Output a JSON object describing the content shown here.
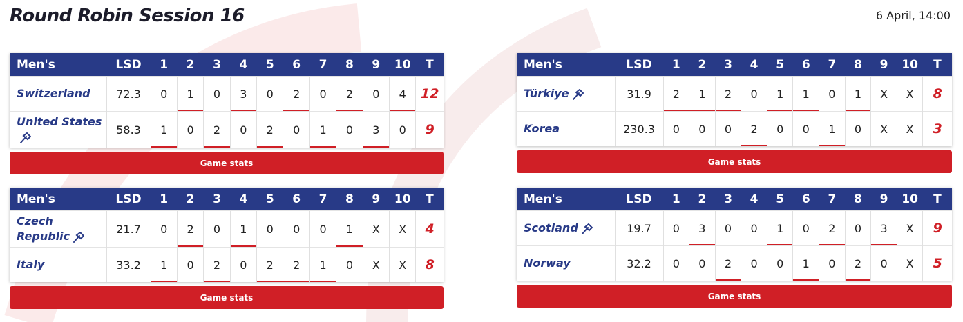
{
  "header": {
    "title": "Round Robin Session 16",
    "date": "6 April, 14:00"
  },
  "games": [
    {
      "columns": [
        "Men's",
        "LSD",
        "1",
        "2",
        "3",
        "4",
        "5",
        "6",
        "7",
        "8",
        "9",
        "10",
        "T"
      ],
      "teams": [
        {
          "name": "Switzerland",
          "hammer": false,
          "lsd": 72.3,
          "ends": [
            0,
            1,
            0,
            3,
            0,
            2,
            0,
            2,
            0,
            4
          ],
          "total": 12
        },
        {
          "name": "United States",
          "hammer": true,
          "lsd": 58.3,
          "ends": [
            1,
            0,
            2,
            0,
            2,
            0,
            1,
            0,
            3,
            0
          ],
          "total": 9
        }
      ],
      "button": "Game stats"
    },
    {
      "columns": [
        "Men's",
        "LSD",
        "1",
        "2",
        "3",
        "4",
        "5",
        "6",
        "7",
        "8",
        "9",
        "10",
        "T"
      ],
      "teams": [
        {
          "name": "Türkiye",
          "hammer": true,
          "lsd": 31.9,
          "ends": [
            2,
            1,
            2,
            0,
            1,
            1,
            0,
            1,
            "X",
            "X"
          ],
          "total": 8
        },
        {
          "name": "Korea",
          "hammer": false,
          "lsd": 230.3,
          "ends": [
            0,
            0,
            0,
            2,
            0,
            0,
            1,
            0,
            "X",
            "X"
          ],
          "total": 3
        }
      ],
      "button": "Game stats"
    },
    {
      "columns": [
        "Men's",
        "LSD",
        "1",
        "2",
        "3",
        "4",
        "5",
        "6",
        "7",
        "8",
        "9",
        "10",
        "T"
      ],
      "teams": [
        {
          "name": "Czech Republic",
          "hammer": true,
          "lsd": 21.7,
          "ends": [
            0,
            2,
            0,
            1,
            0,
            0,
            0,
            1,
            "X",
            "X"
          ],
          "total": 4
        },
        {
          "name": "Italy",
          "hammer": false,
          "lsd": 33.2,
          "ends": [
            1,
            0,
            2,
            0,
            2,
            2,
            1,
            0,
            "X",
            "X"
          ],
          "total": 8
        }
      ],
      "button": "Game stats"
    },
    {
      "columns": [
        "Men's",
        "LSD",
        "1",
        "2",
        "3",
        "4",
        "5",
        "6",
        "7",
        "8",
        "9",
        "10",
        "T"
      ],
      "teams": [
        {
          "name": "Scotland",
          "hammer": true,
          "lsd": 19.7,
          "ends": [
            0,
            3,
            0,
            0,
            1,
            0,
            2,
            0,
            3,
            "X"
          ],
          "total": 9
        },
        {
          "name": "Norway",
          "hammer": false,
          "lsd": 32.2,
          "ends": [
            0,
            0,
            2,
            0,
            0,
            1,
            0,
            2,
            0,
            "X"
          ],
          "total": 5
        }
      ],
      "button": "Game stats"
    }
  ]
}
